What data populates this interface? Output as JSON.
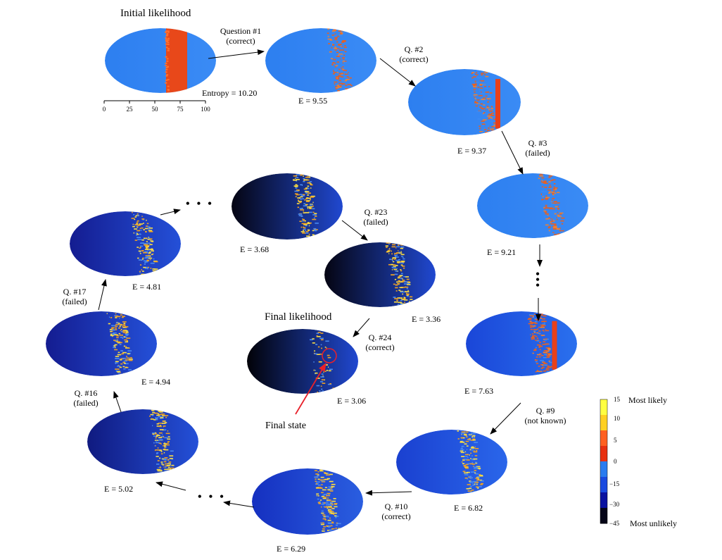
{
  "titles": {
    "initial": "Initial likelihood",
    "final": "Final likelihood",
    "final_state": "Final state"
  },
  "entropy_first": "Entropy = 10.20",
  "axis_ticks": [
    "0",
    "25",
    "50",
    "75",
    "100"
  ],
  "colorbar": {
    "ticks": [
      "15",
      "10",
      "5",
      "0",
      "−15",
      "−30",
      "−45"
    ],
    "top_label": "Most likely",
    "bottom_label": "Most unlikely",
    "colors": [
      "#ffff40",
      "#ffd020",
      "#ff6020",
      "#e83010",
      "#2a7cf0",
      "#1a4ae0",
      "#0a12a0",
      "#050518"
    ]
  },
  "maps": [
    {
      "id": "initial",
      "entropy": null,
      "base_left": "#2d7ff0",
      "base_right": "#3a8bf5",
      "band": "solid",
      "hot": "#e8481a"
    },
    {
      "id": "q1",
      "entropy": "E = 9.55",
      "base_left": "#2d7ff0",
      "base_right": "#3a8bf5",
      "band": "streaky",
      "hot": "#e8481a"
    },
    {
      "id": "q2",
      "entropy": "E = 9.37",
      "base_left": "#2d7ff0",
      "base_right": "#3a8bf5",
      "band": "streaky-red",
      "hot": "#e8481a"
    },
    {
      "id": "q3",
      "entropy": "E = 9.21",
      "base_left": "#2d7ff0",
      "base_right": "#3a8bf5",
      "band": "streaky",
      "hot": "#e8481a"
    },
    {
      "id": "q9pre",
      "entropy": "E = 7.63",
      "base_left": "#1a46d8",
      "base_right": "#2a70ee",
      "band": "streaky-red",
      "hot": "#e8481a"
    },
    {
      "id": "q9",
      "entropy": "E = 6.82",
      "base_left": "#1a40d0",
      "base_right": "#2a66ea",
      "band": "yellow",
      "hot": "#f0a020"
    },
    {
      "id": "q10",
      "entropy": "E = 6.29",
      "base_left": "#1530c0",
      "base_right": "#2a5ee0",
      "band": "yellow",
      "hot": "#f0a020"
    },
    {
      "id": "q16pre",
      "entropy": "E = 5.02",
      "base_left": "#101a80",
      "base_right": "#2450d8",
      "band": "yellow",
      "hot": "#f0a020"
    },
    {
      "id": "q16",
      "entropy": "E = 4.94",
      "base_left": "#141c90",
      "base_right": "#2450d8",
      "band": "yellow",
      "hot": "#f0a020"
    },
    {
      "id": "q17",
      "entropy": "E = 4.81",
      "base_left": "#141c90",
      "base_right": "#2450d8",
      "band": "yellow",
      "hot": "#f0a020"
    },
    {
      "id": "q23pre",
      "entropy": "E = 3.68",
      "base_left": "#050512",
      "base_right": "#2048d0",
      "band": "yellow",
      "hot": "#f0a020"
    },
    {
      "id": "q23",
      "entropy": "E = 3.36",
      "base_left": "#050512",
      "base_right": "#2048d0",
      "band": "yellow",
      "hot": "#f0a020"
    },
    {
      "id": "final",
      "entropy": "E = 3.06",
      "base_left": "#020208",
      "base_right": "#2048d0",
      "band": "sparse",
      "hot": "#f0a020"
    }
  ],
  "questions": [
    {
      "id": "q1",
      "line1": "Question #1",
      "line2": "(correct)"
    },
    {
      "id": "q2",
      "line1": "Q. #2",
      "line2": "(correct)"
    },
    {
      "id": "q3",
      "line1": "Q. #3",
      "line2": "(failed)"
    },
    {
      "id": "q9",
      "line1": "Q. #9",
      "line2": "(not known)"
    },
    {
      "id": "q10",
      "line1": "Q. #10",
      "line2": "(correct)"
    },
    {
      "id": "q16",
      "line1": "Q. #16",
      "line2": "(failed)"
    },
    {
      "id": "q17",
      "line1": "Q. #17",
      "line2": "(failed)"
    },
    {
      "id": "q23",
      "line1": "Q. #23",
      "line2": "(failed)"
    },
    {
      "id": "q24",
      "line1": "Q. #24",
      "line2": "(correct)"
    }
  ],
  "highlight_color": "#e8202a"
}
